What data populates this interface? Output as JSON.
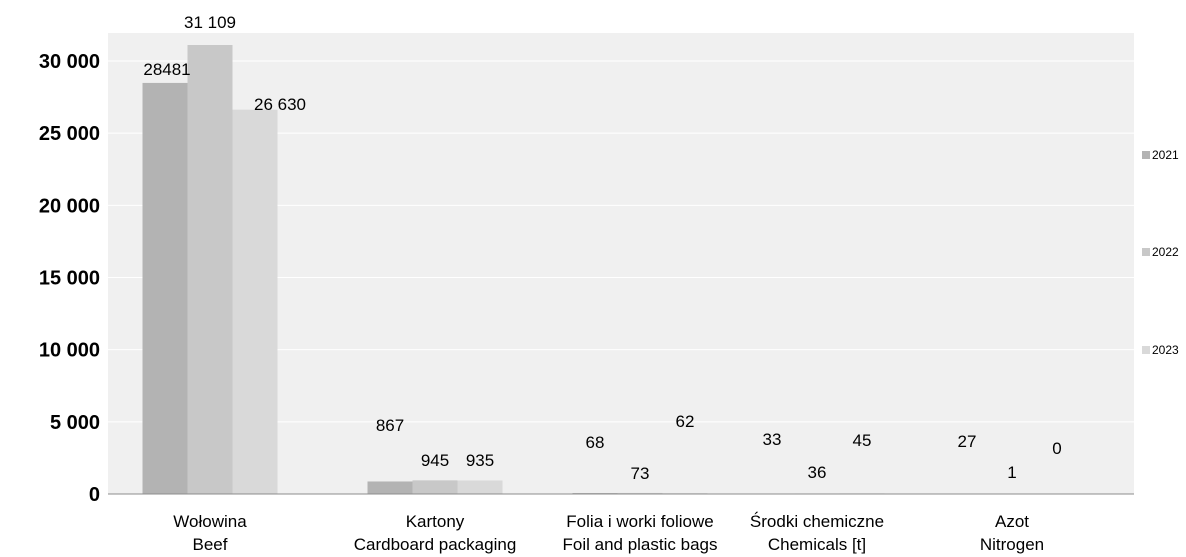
{
  "chart_data": {
    "type": "bar",
    "categories": [
      [
        "Wołowina",
        "Beef"
      ],
      [
        "Kartony",
        "Cardboard packaging"
      ],
      [
        "Folia i worki foliowe",
        "Foil and plastic bags"
      ],
      [
        "Środki chemiczne",
        "Chemicals [t]"
      ],
      [
        "Azot",
        "Nitrogen"
      ]
    ],
    "series": [
      {
        "name": "2021",
        "values": [
          28481,
          867,
          68,
          33,
          27
        ],
        "labels": [
          "28481",
          "867",
          "68",
          "33",
          "27"
        ],
        "color": "#b3b3b3"
      },
      {
        "name": "2022",
        "values": [
          31109,
          945,
          73,
          36,
          1
        ],
        "labels": [
          "31 109",
          "945",
          "73",
          "36",
          "1"
        ],
        "color": "#c8c8c8"
      },
      {
        "name": "2023",
        "values": [
          26630,
          935,
          62,
          45,
          0
        ],
        "labels": [
          "26 630",
          "935",
          "62",
          "45",
          "0"
        ],
        "color": "#d9d9d9"
      }
    ],
    "y_ticks": [
      {
        "value": 0,
        "label": "0"
      },
      {
        "value": 5000,
        "label": "5 000"
      },
      {
        "value": 10000,
        "label": "10 000"
      },
      {
        "value": 15000,
        "label": "15 000"
      },
      {
        "value": 20000,
        "label": "20 000"
      },
      {
        "value": 25000,
        "label": "25 000"
      },
      {
        "value": 30000,
        "label": "30 000"
      }
    ],
    "ylim": [
      0,
      32000
    ],
    "grid": true,
    "legend_position": "right",
    "plot_background": "#f0f0f0"
  }
}
